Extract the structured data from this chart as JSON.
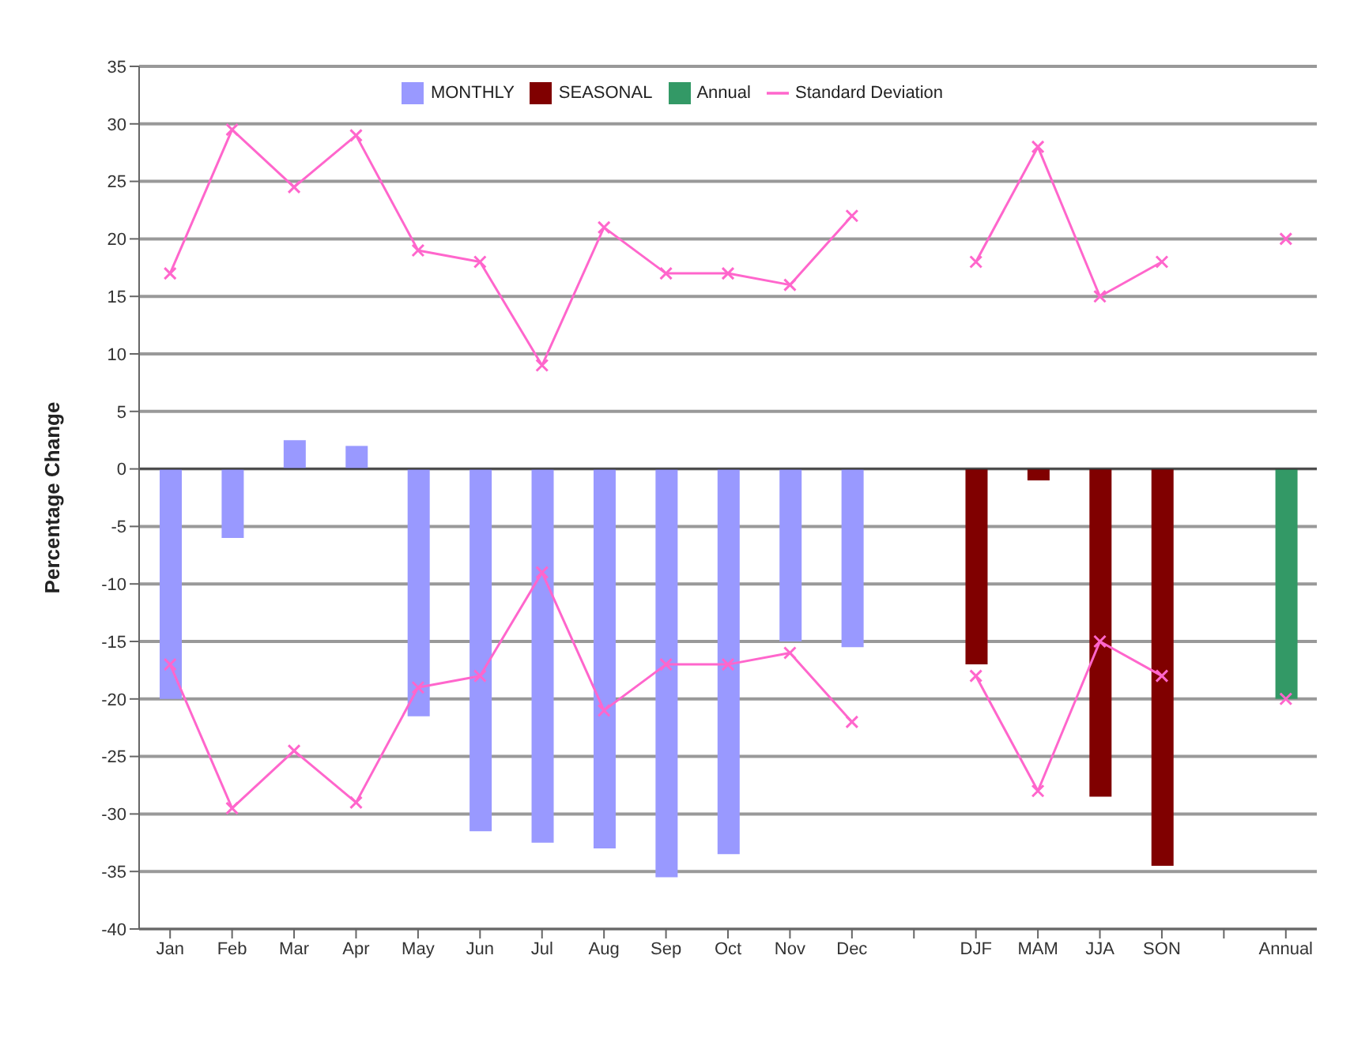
{
  "chart_data": {
    "type": "bar",
    "ylabel": "Percentage Change",
    "categories": [
      "Jan",
      "Feb",
      "Mar",
      "Apr",
      "May",
      "Jun",
      "Jul",
      "Aug",
      "Sep",
      "Oct",
      "Nov",
      "Dec",
      null,
      "DJF",
      "MAM",
      "JJA",
      "SON",
      null,
      "Annual"
    ],
    "series": [
      {
        "name": "MONTHLY",
        "color": "#9999ff",
        "values": [
          -20,
          -6,
          2.5,
          2,
          -21.5,
          -31.5,
          -32.5,
          -33,
          -35.5,
          -33.5,
          -15,
          -15.5,
          null,
          null,
          null,
          null,
          null,
          null,
          null
        ]
      },
      {
        "name": "SEASONAL",
        "color": "#800000",
        "values": [
          null,
          null,
          null,
          null,
          null,
          null,
          null,
          null,
          null,
          null,
          null,
          null,
          null,
          -17,
          -1,
          -28.5,
          -34.5,
          null,
          null
        ]
      },
      {
        "name": "Annual",
        "color": "#339966",
        "values": [
          null,
          null,
          null,
          null,
          null,
          null,
          null,
          null,
          null,
          null,
          null,
          null,
          null,
          null,
          null,
          null,
          null,
          null,
          -20
        ]
      },
      {
        "name": "Standard Deviation",
        "type": "line",
        "color": "#ff66cc",
        "values": [
          17,
          29.5,
          24.5,
          29,
          19,
          18,
          9,
          21,
          17,
          17,
          16,
          22,
          null,
          18,
          28,
          15,
          18,
          null,
          20
        ]
      },
      {
        "type": "line",
        "color": "#ff66cc",
        "values": [
          -17,
          -29.5,
          -24.5,
          -29,
          -19,
          -18,
          -9,
          -21,
          -17,
          -17,
          -16,
          -22,
          null,
          -18,
          -28,
          -15,
          -18,
          null,
          -20
        ]
      }
    ],
    "ylim": [
      -40,
      35
    ],
    "yticks": [
      -40,
      -35,
      -30,
      -25,
      -20,
      -15,
      -10,
      -5,
      0,
      5,
      10,
      15,
      20,
      25,
      30,
      35
    ],
    "grid": "y",
    "legend": "top",
    "marker": "cross"
  }
}
